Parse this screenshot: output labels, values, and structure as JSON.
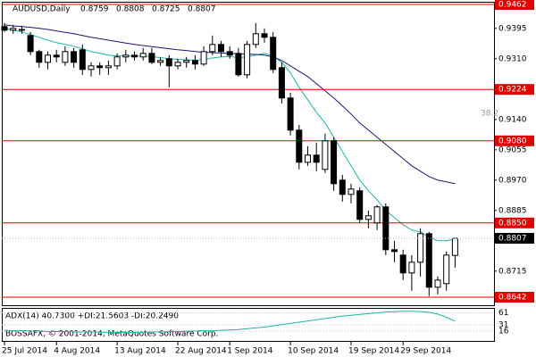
{
  "chart_data": {
    "type": "candlestick",
    "title": "AUDUSD,Daily",
    "header_ohlc": [
      0.8759,
      0.8808,
      0.8725,
      0.8807
    ],
    "categories": [
      "25 Jul 2014",
      null,
      null,
      null,
      null,
      null,
      "4 Aug 2014",
      null,
      null,
      null,
      null,
      null,
      null,
      "13 Aug 2014",
      null,
      null,
      null,
      null,
      null,
      null,
      "22 Aug 2014",
      null,
      null,
      null,
      null,
      null,
      "1 Sep 2014",
      null,
      null,
      null,
      null,
      null,
      null,
      "10 Sep 2014",
      null,
      null,
      null,
      null,
      null,
      null,
      "19 Sep 2014",
      null,
      null,
      null,
      null,
      null,
      "29 Sep 2014",
      null,
      null,
      null,
      null,
      null,
      null
    ],
    "open": [
      0.94,
      0.939,
      0.9392,
      0.9375,
      0.933,
      0.93,
      0.932,
      0.93,
      0.933,
      0.9335,
      0.928,
      0.929,
      0.9285,
      0.929,
      0.9315,
      0.932,
      0.9315,
      0.9325,
      0.93,
      0.931,
      0.929,
      0.93,
      0.9305,
      0.9295,
      0.933,
      0.935,
      0.933,
      0.9325,
      0.9265,
      0.935,
      0.938,
      0.937,
      0.9285,
      0.92,
      0.911,
      0.902,
      0.904,
      0.9,
      0.908,
      0.897,
      0.893,
      0.894,
      0.886,
      0.885,
      0.8895,
      0.8775,
      0.876,
      0.871,
      0.874,
      0.882,
      0.867,
      0.868,
      0.8759
    ],
    "high": [
      0.941,
      0.9405,
      0.9402,
      0.9385,
      0.9335,
      0.933,
      0.9335,
      0.9345,
      0.934,
      0.935,
      0.93,
      0.93,
      0.9305,
      0.9325,
      0.9335,
      0.933,
      0.934,
      0.934,
      0.9315,
      0.932,
      0.931,
      0.9315,
      0.932,
      0.9345,
      0.9375,
      0.936,
      0.9345,
      0.934,
      0.936,
      0.941,
      0.9395,
      0.9385,
      0.93,
      0.9215,
      0.9125,
      0.9065,
      0.9075,
      0.91,
      0.909,
      0.8985,
      0.896,
      0.895,
      0.8885,
      0.89,
      0.8905,
      0.88,
      0.8775,
      0.876,
      0.8835,
      0.8825,
      0.87,
      0.877,
      0.8808
    ],
    "low": [
      0.9385,
      0.938,
      0.938,
      0.932,
      0.9285,
      0.928,
      0.93,
      0.929,
      0.9285,
      0.9265,
      0.926,
      0.9265,
      0.9265,
      0.928,
      0.93,
      0.9305,
      0.9305,
      0.9295,
      0.929,
      0.923,
      0.928,
      0.9285,
      0.928,
      0.929,
      0.932,
      0.9315,
      0.931,
      0.926,
      0.9255,
      0.934,
      0.9355,
      0.927,
      0.9185,
      0.9095,
      0.9,
      0.901,
      0.8995,
      0.899,
      0.894,
      0.891,
      0.8905,
      0.885,
      0.8835,
      0.883,
      0.876,
      0.874,
      0.869,
      0.866,
      0.87,
      0.8645,
      0.865,
      0.866,
      0.8725
    ],
    "close": [
      0.939,
      0.9395,
      0.939,
      0.933,
      0.93,
      0.932,
      0.9315,
      0.933,
      0.93,
      0.928,
      0.929,
      0.9285,
      0.929,
      0.9315,
      0.932,
      0.9315,
      0.9325,
      0.93,
      0.9305,
      0.929,
      0.93,
      0.9305,
      0.9295,
      0.933,
      0.935,
      0.933,
      0.932,
      0.9265,
      0.935,
      0.938,
      0.937,
      0.928,
      0.92,
      0.911,
      0.902,
      0.904,
      0.902,
      0.908,
      0.896,
      0.893,
      0.8945,
      0.886,
      0.887,
      0.8895,
      0.8775,
      0.877,
      0.871,
      0.874,
      0.882,
      0.867,
      0.869,
      0.876,
      0.8807
    ],
    "bull_color": "#ffffff",
    "bear_color": "#000000",
    "series": [
      {
        "color": "#20b2aa",
        "values": [
          0.9395,
          0.939,
          0.9385,
          0.9378,
          0.937,
          0.9362,
          0.9355,
          0.935,
          0.9345,
          0.9338,
          0.933,
          0.9325,
          0.932,
          0.9318,
          0.9318,
          0.9317,
          0.9318,
          0.9316,
          0.9313,
          0.931,
          0.9308,
          0.9307,
          0.9306,
          0.9308,
          0.9312,
          0.9315,
          0.9316,
          0.9313,
          0.9315,
          0.932,
          0.9325,
          0.9318,
          0.93,
          0.927,
          0.923,
          0.9195,
          0.916,
          0.913,
          0.909,
          0.905,
          0.901,
          0.897,
          0.894,
          0.8915,
          0.8885,
          0.8865,
          0.8845,
          0.883,
          0.8825,
          0.881,
          0.88,
          0.88,
          0.8805
        ]
      },
      {
        "color": "#191970",
        "values": [
          0.9405,
          0.9402,
          0.94,
          0.9398,
          0.9395,
          0.9392,
          0.9388,
          0.9384,
          0.938,
          0.9375,
          0.937,
          0.9366,
          0.9362,
          0.9358,
          0.9354,
          0.935,
          0.9347,
          0.9344,
          0.9341,
          0.9338,
          0.9335,
          0.9333,
          0.933,
          0.9328,
          0.9327,
          0.9326,
          0.9325,
          0.9324,
          0.9323,
          0.9322,
          0.932,
          0.9315,
          0.9305,
          0.929,
          0.9275,
          0.926,
          0.924,
          0.922,
          0.92,
          0.9178,
          0.9155,
          0.913,
          0.911,
          0.909,
          0.907,
          0.905,
          0.903,
          0.901,
          0.8995,
          0.898,
          0.897,
          0.8965,
          0.896
        ]
      }
    ],
    "ylim": [
      0.86195,
      0.94695
    ],
    "yticks": [
      0.9395,
      {
        "value": 0.931,
        "label": "0.9310"
      },
      {
        "value": 0.914,
        "label": "0.9140"
      },
      0.9055,
      {
        "value": 0.897,
        "label": "0.8970"
      },
      0.8885,
      0.8715
    ],
    "levels": [
      0.9462,
      0.9224,
      {
        "value": 0.908,
        "label": "0.9080"
      },
      {
        "value": 0.885,
        "label": "0.8850"
      },
      0.8642
    ],
    "level_color": "#e00000",
    "current_price": 0.8807,
    "annotation": {
      "value": 0.9157,
      "label": "38.2"
    },
    "indicator": {
      "label": "ADX(14) 40.7300 +DI:21.5603 -DI:20.2490",
      "color": "#20b2aa",
      "ylim": [
        -8,
        73
      ],
      "yticks": [
        61,
        31,
        16
      ],
      "values": [
        18,
        17,
        17,
        16,
        16,
        15,
        15,
        15,
        14,
        14,
        14,
        14,
        13,
        13,
        13,
        13,
        13,
        14,
        14,
        15,
        15,
        16,
        16,
        17,
        17,
        18,
        19,
        20,
        22,
        24,
        26,
        29,
        32,
        35,
        38,
        41,
        44,
        47,
        50,
        53,
        55,
        57,
        59,
        61,
        63,
        64,
        65,
        65,
        64,
        62,
        58,
        50,
        40.73
      ]
    },
    "watermark": "BOSSAFX, © 2001-2014, MetaQuotes Software Corp."
  }
}
